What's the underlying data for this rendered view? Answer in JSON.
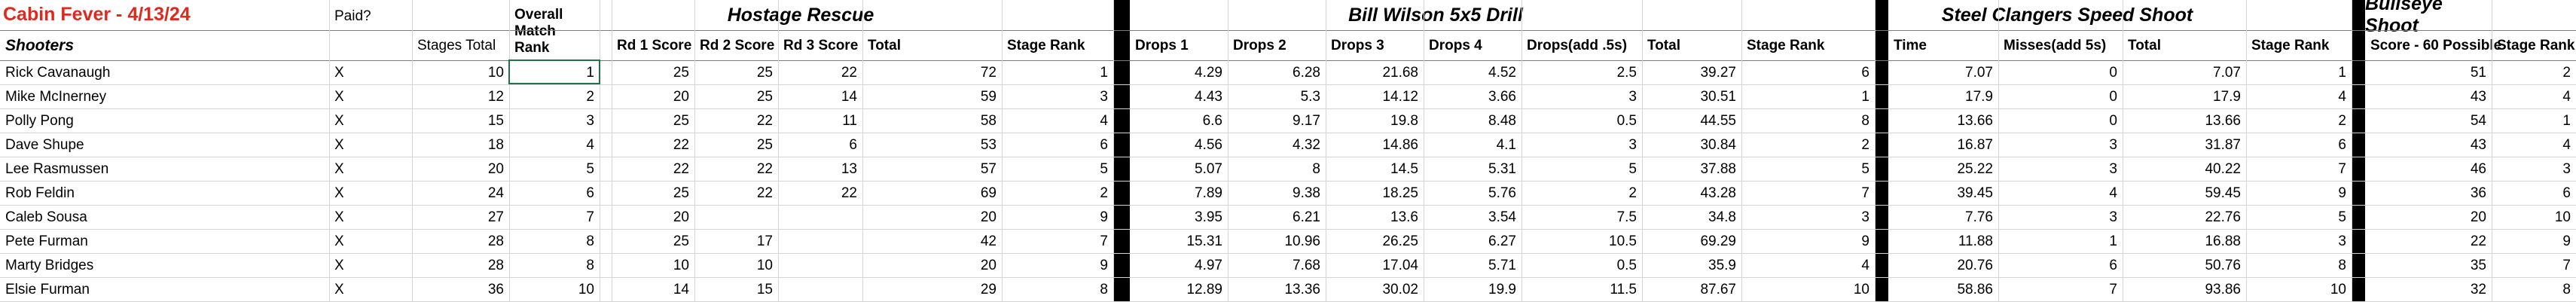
{
  "title": "Cabin Fever - 4/13/24",
  "headers": {
    "paid": "Paid?",
    "shooters": "Shooters",
    "stages_total": "Stages Total",
    "overall_match_rank": "Overall Match Rank",
    "hostage_rescue": {
      "title": "Hostage Rescue",
      "rd1": "Rd 1 Score",
      "rd2": "Rd 2 Score",
      "rd3": "Rd 3 Score",
      "total": "Total",
      "stage_rank": "Stage Rank"
    },
    "bill_wilson": {
      "title": "Bill Wilson 5x5 Drill",
      "drops1": "Drops 1",
      "drops2": "Drops 2",
      "drops3": "Drops 3",
      "drops4": "Drops 4",
      "drops_add": "Drops(add .5s)",
      "total": "Total",
      "stage_rank": "Stage Rank"
    },
    "steel_clangers": {
      "title": "Steel Clangers Speed Shoot",
      "time": "Time",
      "misses": "Misses(add 5s)",
      "total": "Total",
      "stage_rank": "Stage Rank"
    },
    "bullseye": {
      "title": "Bullseye Shoot",
      "score": "Score - 60 Possible",
      "stage_rank": "Stage Rank"
    }
  },
  "rows": [
    {
      "name": "Rick Cavanaugh",
      "paid": "X",
      "stages_total": "10",
      "overall_rank": "1",
      "hr1": "25",
      "hr2": "25",
      "hr3": "22",
      "hr_total": "72",
      "hr_rank": "1",
      "d1": "4.29",
      "d2": "6.28",
      "d3": "21.68",
      "d4": "4.52",
      "dadd": "2.5",
      "bw_total": "39.27",
      "bw_rank": "6",
      "sc_time": "7.07",
      "sc_miss": "0",
      "sc_total": "7.07",
      "sc_rank": "1",
      "bs_score": "51",
      "bs_rank": "2"
    },
    {
      "name": "Mike McInerney",
      "paid": "X",
      "stages_total": "12",
      "overall_rank": "2",
      "hr1": "20",
      "hr2": "25",
      "hr3": "14",
      "hr_total": "59",
      "hr_rank": "3",
      "d1": "4.43",
      "d2": "5.3",
      "d3": "14.12",
      "d4": "3.66",
      "dadd": "3",
      "bw_total": "30.51",
      "bw_rank": "1",
      "sc_time": "17.9",
      "sc_miss": "0",
      "sc_total": "17.9",
      "sc_rank": "4",
      "bs_score": "43",
      "bs_rank": "4"
    },
    {
      "name": "Polly Pong",
      "paid": "X",
      "stages_total": "15",
      "overall_rank": "3",
      "hr1": "25",
      "hr2": "22",
      "hr3": "11",
      "hr_total": "58",
      "hr_rank": "4",
      "d1": "6.6",
      "d2": "9.17",
      "d3": "19.8",
      "d4": "8.48",
      "dadd": "0.5",
      "bw_total": "44.55",
      "bw_rank": "8",
      "sc_time": "13.66",
      "sc_miss": "0",
      "sc_total": "13.66",
      "sc_rank": "2",
      "bs_score": "54",
      "bs_rank": "1"
    },
    {
      "name": "Dave Shupe",
      "paid": "X",
      "stages_total": "18",
      "overall_rank": "4",
      "hr1": "22",
      "hr2": "25",
      "hr3": "6",
      "hr_total": "53",
      "hr_rank": "6",
      "d1": "4.56",
      "d2": "4.32",
      "d3": "14.86",
      "d4": "4.1",
      "dadd": "3",
      "bw_total": "30.84",
      "bw_rank": "2",
      "sc_time": "16.87",
      "sc_miss": "3",
      "sc_total": "31.87",
      "sc_rank": "6",
      "bs_score": "43",
      "bs_rank": "4"
    },
    {
      "name": "Lee Rasmussen",
      "paid": "X",
      "stages_total": "20",
      "overall_rank": "5",
      "hr1": "22",
      "hr2": "22",
      "hr3": "13",
      "hr_total": "57",
      "hr_rank": "5",
      "d1": "5.07",
      "d2": "8",
      "d3": "14.5",
      "d4": "5.31",
      "dadd": "5",
      "bw_total": "37.88",
      "bw_rank": "5",
      "sc_time": "25.22",
      "sc_miss": "3",
      "sc_total": "40.22",
      "sc_rank": "7",
      "bs_score": "46",
      "bs_rank": "3"
    },
    {
      "name": "Rob Feldin",
      "paid": "X",
      "stages_total": "24",
      "overall_rank": "6",
      "hr1": "25",
      "hr2": "22",
      "hr3": "22",
      "hr_total": "69",
      "hr_rank": "2",
      "d1": "7.89",
      "d2": "9.38",
      "d3": "18.25",
      "d4": "5.76",
      "dadd": "2",
      "bw_total": "43.28",
      "bw_rank": "7",
      "sc_time": "39.45",
      "sc_miss": "4",
      "sc_total": "59.45",
      "sc_rank": "9",
      "bs_score": "36",
      "bs_rank": "6"
    },
    {
      "name": "Caleb Sousa",
      "paid": "X",
      "stages_total": "27",
      "overall_rank": "7",
      "hr1": "20",
      "hr2": "",
      "hr3": "",
      "hr_total": "20",
      "hr_rank": "9",
      "d1": "3.95",
      "d2": "6.21",
      "d3": "13.6",
      "d4": "3.54",
      "dadd": "7.5",
      "bw_total": "34.8",
      "bw_rank": "3",
      "sc_time": "7.76",
      "sc_miss": "3",
      "sc_total": "22.76",
      "sc_rank": "5",
      "bs_score": "20",
      "bs_rank": "10"
    },
    {
      "name": "Pete Furman",
      "paid": "X",
      "stages_total": "28",
      "overall_rank": "8",
      "hr1": "25",
      "hr2": "17",
      "hr3": "",
      "hr_total": "42",
      "hr_rank": "7",
      "d1": "15.31",
      "d2": "10.96",
      "d3": "26.25",
      "d4": "6.27",
      "dadd": "10.5",
      "bw_total": "69.29",
      "bw_rank": "9",
      "sc_time": "11.88",
      "sc_miss": "1",
      "sc_total": "16.88",
      "sc_rank": "3",
      "bs_score": "22",
      "bs_rank": "9"
    },
    {
      "name": "Marty Bridges",
      "paid": "X",
      "stages_total": "28",
      "overall_rank": "8",
      "hr1": "10",
      "hr2": "10",
      "hr3": "",
      "hr_total": "20",
      "hr_rank": "9",
      "d1": "4.97",
      "d2": "7.68",
      "d3": "17.04",
      "d4": "5.71",
      "dadd": "0.5",
      "bw_total": "35.9",
      "bw_rank": "4",
      "sc_time": "20.76",
      "sc_miss": "6",
      "sc_total": "50.76",
      "sc_rank": "8",
      "bs_score": "35",
      "bs_rank": "7"
    },
    {
      "name": "Elsie Furman",
      "paid": "X",
      "stages_total": "36",
      "overall_rank": "10",
      "hr1": "14",
      "hr2": "15",
      "hr3": "",
      "hr_total": "29",
      "hr_rank": "8",
      "d1": "12.89",
      "d2": "13.36",
      "d3": "30.02",
      "d4": "19.9",
      "dadd": "11.5",
      "bw_total": "87.67",
      "bw_rank": "10",
      "sc_time": "58.86",
      "sc_miss": "7",
      "sc_total": "93.86",
      "sc_rank": "10",
      "bs_score": "32",
      "bs_rank": "8"
    }
  ]
}
